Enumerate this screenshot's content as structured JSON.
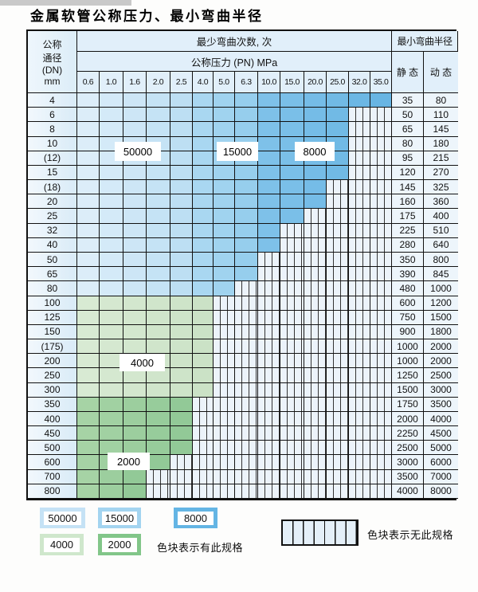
{
  "title": "金属软管公称压力、最小弯曲半径",
  "header": {
    "dn_lines": [
      "公称",
      "通径",
      "(DN)",
      "mm"
    ],
    "bend_cycles_label": "最少弯曲次数, 次",
    "pressure_label": "公称压力 (PN) MPa",
    "pressures": [
      "0.6",
      "1.0",
      "1.6",
      "2.0",
      "2.5",
      "4.0",
      "5.0",
      "6.3",
      "10.0",
      "15.0",
      "20.0",
      "25.0",
      "32.0",
      "35.0"
    ],
    "min_radius_label": "最小弯曲半径",
    "static_label": "静 态",
    "dynamic_label": "动 态"
  },
  "rows": [
    {
      "dn": "4",
      "static": "35",
      "dynamic": "80",
      "colored_through": "35.0"
    },
    {
      "dn": "6",
      "static": "50",
      "dynamic": "110",
      "colored_through": "25.0"
    },
    {
      "dn": "8",
      "static": "65",
      "dynamic": "145",
      "colored_through": "25.0"
    },
    {
      "dn": "10",
      "static": "80",
      "dynamic": "180",
      "colored_through": "25.0"
    },
    {
      "dn": "(12)",
      "static": "95",
      "dynamic": "215",
      "colored_through": "25.0"
    },
    {
      "dn": "15",
      "static": "120",
      "dynamic": "270",
      "colored_through": "25.0"
    },
    {
      "dn": "(18)",
      "static": "145",
      "dynamic": "325",
      "colored_through": "20.0"
    },
    {
      "dn": "20",
      "static": "160",
      "dynamic": "360",
      "colored_through": "20.0"
    },
    {
      "dn": "25",
      "static": "175",
      "dynamic": "400",
      "colored_through": "15.0"
    },
    {
      "dn": "32",
      "static": "225",
      "dynamic": "510",
      "colored_through": "10.0"
    },
    {
      "dn": "40",
      "static": "280",
      "dynamic": "640",
      "colored_through": "10.0"
    },
    {
      "dn": "50",
      "static": "350",
      "dynamic": "800",
      "colored_through": "6.3"
    },
    {
      "dn": "65",
      "static": "390",
      "dynamic": "845",
      "colored_through": "6.3"
    },
    {
      "dn": "80",
      "static": "480",
      "dynamic": "1000",
      "colored_through": "5.0"
    },
    {
      "dn": "100",
      "static": "600",
      "dynamic": "1200",
      "colored_through": "4.0",
      "zone": "4000"
    },
    {
      "dn": "125",
      "static": "750",
      "dynamic": "1500",
      "colored_through": "4.0",
      "zone": "4000"
    },
    {
      "dn": "150",
      "static": "900",
      "dynamic": "1800",
      "colored_through": "4.0",
      "zone": "4000"
    },
    {
      "dn": "(175)",
      "static": "1000",
      "dynamic": "2000",
      "colored_through": "4.0",
      "zone": "4000"
    },
    {
      "dn": "200",
      "static": "1000",
      "dynamic": "2000",
      "colored_through": "4.0",
      "zone": "4000"
    },
    {
      "dn": "250",
      "static": "1250",
      "dynamic": "2500",
      "colored_through": "4.0",
      "zone": "4000"
    },
    {
      "dn": "300",
      "static": "1500",
      "dynamic": "3000",
      "colored_through": "4.0",
      "zone": "4000"
    },
    {
      "dn": "350",
      "static": "1750",
      "dynamic": "3500",
      "colored_through": "2.5",
      "zone": "2000"
    },
    {
      "dn": "400",
      "static": "2000",
      "dynamic": "4000",
      "colored_through": "2.5",
      "zone": "2000"
    },
    {
      "dn": "450",
      "static": "2250",
      "dynamic": "4500",
      "colored_through": "2.5",
      "zone": "2000"
    },
    {
      "dn": "500",
      "static": "2500",
      "dynamic": "5000",
      "colored_through": "2.5",
      "zone": "2000"
    },
    {
      "dn": "600",
      "static": "3000",
      "dynamic": "6000",
      "colored_through": "2.0",
      "zone": "2000"
    },
    {
      "dn": "700",
      "static": "3500",
      "dynamic": "7000",
      "colored_through": "1.6",
      "zone": "2000"
    },
    {
      "dn": "800",
      "static": "4000",
      "dynamic": "8000",
      "colored_through": "1.6",
      "zone": "2000"
    }
  ],
  "fills": {
    "blue_zones": [
      {
        "label": "50000",
        "first_col": "0.6",
        "last_col": "2.5",
        "from": "#dcedf9",
        "to": "#bddff3"
      },
      {
        "label": "15000",
        "first_col": "4.0",
        "last_col": "6.3",
        "from": "#a9d7f1",
        "to": "#96ceed"
      },
      {
        "label": "8000",
        "first_col": "10.0",
        "last_col": "35.0",
        "from": "#7ec1e9",
        "to": "#68b5e3"
      }
    ],
    "green_zones": {
      "4000": {
        "from": "#d8ead3",
        "to": "#cbe2c6"
      },
      "2000": {
        "from": "#a6d3a5",
        "to": "#92c997"
      }
    },
    "hatch_bg": "#ecf3fa",
    "hatch_line": "#333333"
  },
  "legend": {
    "has_spec": [
      {
        "label": "50000",
        "color": "#c5e2f5"
      },
      {
        "label": "15000",
        "color": "#a3d4f0"
      },
      {
        "label": "8000",
        "color": "#64b5e4"
      },
      {
        "label": "4000",
        "color": "#cfe7cc"
      },
      {
        "label": "2000",
        "color": "#82c689"
      }
    ],
    "has_spec_note": "色块表示有此规格",
    "no_spec_note": "色块表示无此规格"
  }
}
